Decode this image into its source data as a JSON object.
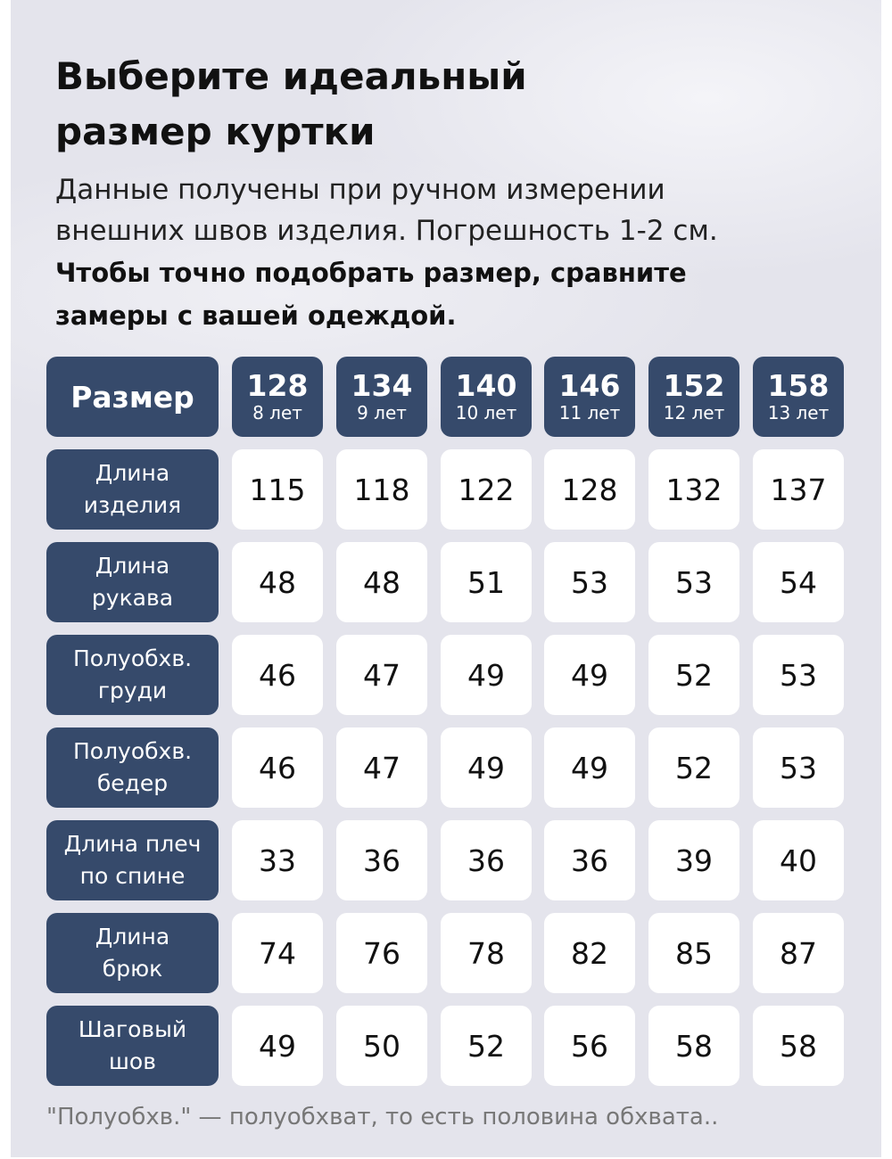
{
  "title": [
    "Выберите идеальный",
    "размер куртки"
  ],
  "subtitle": [
    "Данные получены при ручном измерении",
    "внешних швов изделия. Погрешность 1-2 см."
  ],
  "emphasis": [
    "Чтобы точно подобрать размер, сравните",
    "замеры с вашей одеждой."
  ],
  "table": {
    "header_label": "Размер",
    "sizes": [
      {
        "size": "128",
        "age": "8 лет"
      },
      {
        "size": "134",
        "age": "9 лет"
      },
      {
        "size": "140",
        "age": "10 лет"
      },
      {
        "size": "146",
        "age": "11 лет"
      },
      {
        "size": "152",
        "age": "12 лет"
      },
      {
        "size": "158",
        "age": "13 лет"
      }
    ],
    "rows": [
      {
        "label": [
          "Длина",
          "изделия"
        ],
        "values": [
          "115",
          "118",
          "122",
          "128",
          "132",
          "137"
        ]
      },
      {
        "label": [
          "Длина",
          "рукава"
        ],
        "values": [
          "48",
          "48",
          "51",
          "53",
          "53",
          "54"
        ]
      },
      {
        "label": [
          "Полуобхв.",
          "груди"
        ],
        "values": [
          "46",
          "47",
          "49",
          "49",
          "52",
          "53"
        ]
      },
      {
        "label": [
          "Полуобхв.",
          "бедер"
        ],
        "values": [
          "46",
          "47",
          "49",
          "49",
          "52",
          "53"
        ]
      },
      {
        "label": [
          "Длина плеч",
          "по спине"
        ],
        "values": [
          "33",
          "36",
          "36",
          "36",
          "39",
          "40"
        ]
      },
      {
        "label": [
          "Длина",
          "брюк"
        ],
        "values": [
          "74",
          "76",
          "78",
          "82",
          "85",
          "87"
        ]
      },
      {
        "label": [
          "Шаговый",
          "шов"
        ],
        "values": [
          "49",
          "50",
          "52",
          "56",
          "58",
          "58"
        ]
      }
    ]
  },
  "footnote": "\"Полуобхв.\" — полуобхват, то есть половина обхвата..",
  "colors": {
    "header_bg": "#364a6b",
    "cell_bg": "#ffffff",
    "panel_bg": "#e4e4ec"
  }
}
